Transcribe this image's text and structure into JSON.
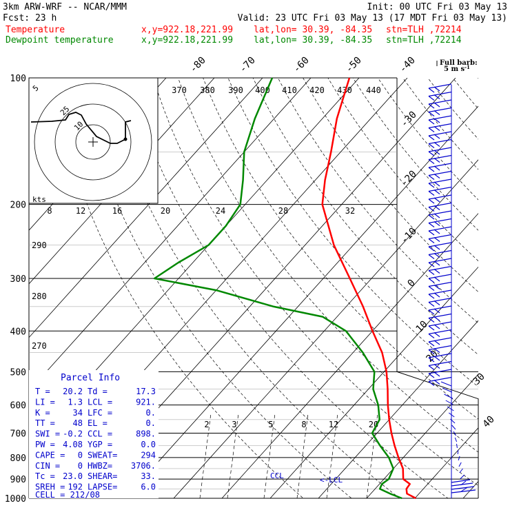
{
  "header": {
    "model": "3km ARW-WRF -- NCAR/MMM",
    "init": "Init: 00 UTC Fri 03 May 13",
    "fcst": "Fcst:    23 h",
    "valid": "Valid: 23 UTC Fri 03 May 13 (17 MDT Fri 03 May 13)",
    "temp_line": {
      "label": "Temperature",
      "xy": "x,y=922.18,221.99",
      "latlon": "lat,lon= 30.39, -84.35",
      "stn": "stn=TLH ,72214"
    },
    "dew_line": {
      "label": "Dewpoint temperature",
      "xy": "x,y=922.18,221.99",
      "latlon": "lat,lon= 30.39, -84.35",
      "stn": "stn=TLH ,72214"
    },
    "barb_title": "Full barb:",
    "barb_unit": "5 m s",
    "barb_unit_sup": "-1"
  },
  "colors": {
    "temperature": "#ff0000",
    "dewpoint": "#008800",
    "wind": "#0000cc",
    "lines": "#000000",
    "hodo": "#000000"
  },
  "chart_data": {
    "type": "line",
    "subtype": "skew-T log-p",
    "pressure_levels": [
      100,
      200,
      300,
      400,
      500,
      600,
      700,
      800,
      900,
      1000
    ],
    "temperature_isotherm_labels": [
      "-80",
      "-70",
      "-60",
      "-50",
      "-40",
      "-30",
      "-20",
      "-10",
      "0",
      "10",
      "20",
      "30",
      "40"
    ],
    "theta_labels": [
      "370",
      "380",
      "390",
      "400",
      "410",
      "420",
      "430",
      "440"
    ],
    "theta_lower_labels": [
      "290",
      "280",
      "270"
    ],
    "mixing_ratio_labels": [
      "2",
      "3",
      "5",
      "8",
      "12",
      "20"
    ],
    "hodograph": {
      "unit": "kts",
      "ring_labels": [
        "5",
        "10",
        "25"
      ],
      "axis_labels": [
        "8",
        "12",
        "16",
        "20",
        "24",
        "28",
        "32"
      ]
    },
    "series": [
      {
        "name": "Temperature",
        "points": [
          [
            1000,
            20.2
          ],
          [
            975,
            17.5
          ],
          [
            950,
            16.5
          ],
          [
            925,
            16.3
          ],
          [
            900,
            14.0
          ],
          [
            850,
            12.0
          ],
          [
            800,
            9.0
          ],
          [
            750,
            6.0
          ],
          [
            700,
            3.0
          ],
          [
            650,
            0.0
          ],
          [
            600,
            -3.0
          ],
          [
            550,
            -6.0
          ],
          [
            500,
            -9.5
          ],
          [
            450,
            -14.0
          ],
          [
            400,
            -20.0
          ],
          [
            350,
            -26.5
          ],
          [
            300,
            -34.5
          ],
          [
            250,
            -44.0
          ],
          [
            200,
            -54.0
          ],
          [
            175,
            -58.0
          ],
          [
            150,
            -62.0
          ],
          [
            125,
            -67.0
          ],
          [
            100,
            -72.0
          ]
        ]
      },
      {
        "name": "Dewpoint temperature",
        "points": [
          [
            1000,
            17.3
          ],
          [
            975,
            14.0
          ],
          [
            950,
            11.0
          ],
          [
            925,
            10.5
          ],
          [
            900,
            11.0
          ],
          [
            850,
            10.0
          ],
          [
            800,
            7.0
          ],
          [
            750,
            3.0
          ],
          [
            700,
            -1.0
          ],
          [
            650,
            -2.0
          ],
          [
            600,
            -5.0
          ],
          [
            550,
            -9.0
          ],
          [
            500,
            -12.0
          ],
          [
            450,
            -18.0
          ],
          [
            400,
            -25.5
          ],
          [
            370,
            -33.0
          ],
          [
            350,
            -45.0
          ],
          [
            320,
            -60.0
          ],
          [
            300,
            -75.0
          ],
          [
            275,
            -73.0
          ],
          [
            250,
            -70.0
          ],
          [
            225,
            -70.0
          ],
          [
            200,
            -71.0
          ],
          [
            175,
            -75.0
          ],
          [
            150,
            -80.0
          ],
          [
            125,
            -84.0
          ],
          [
            100,
            -88.0
          ]
        ]
      }
    ],
    "parcel_labels": {
      "ccl": "CCL",
      "lcl": "<-LCL"
    }
  },
  "parcel": {
    "title": "Parcel Info",
    "rows": [
      [
        "T  =",
        "20.2",
        "Td =",
        "17.3"
      ],
      [
        "LI =",
        "1.3",
        "LCL =",
        "921."
      ],
      [
        "K  =",
        "34",
        "LFC =",
        "0."
      ],
      [
        "TT =",
        "48",
        "EL  =",
        "0."
      ],
      [
        "SWI =",
        "-0.2",
        "CCL =",
        "898."
      ],
      [
        "PW =",
        "4.08",
        "YGP =",
        "0.0"
      ],
      [
        "CAPE =",
        "0",
        "SWEAT=",
        "294"
      ],
      [
        "CIN =",
        "0",
        "HWBZ=",
        "3706."
      ],
      [
        "Tc =",
        "23.0",
        "SHEAR=",
        "33."
      ],
      [
        "SREH =",
        "192",
        "LAPSE=",
        "6.0"
      ]
    ],
    "cell": "CELL = 212/08"
  }
}
